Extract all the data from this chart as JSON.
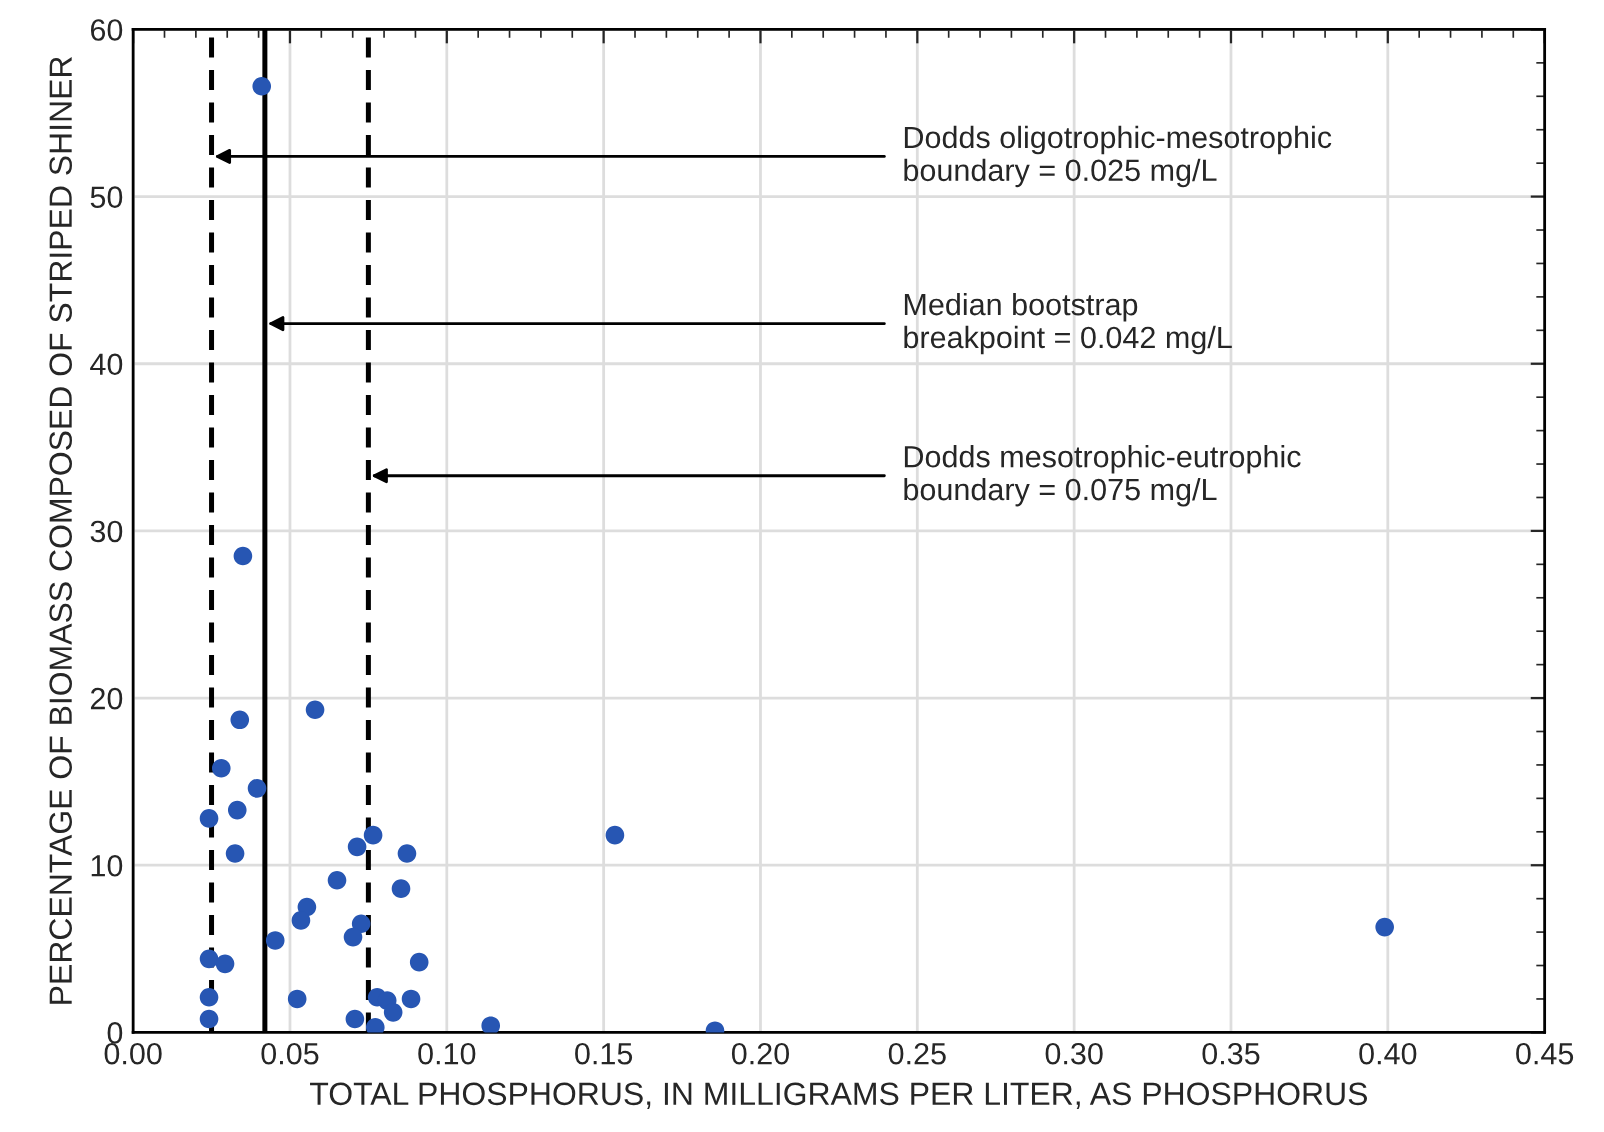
{
  "chart_data": {
    "type": "scatter",
    "xlabel": "TOTAL PHOSPHORUS, IN MILLIGRAMS PER LITER, AS PHOSPHORUS",
    "ylabel": "PERCENTAGE OF BIOMASS COMPOSED OF STRIPED SHINER",
    "series": [
      {
        "color": "#2756b3",
        "x": [
          0.041,
          0.035,
          0.058,
          0.034,
          0.0395,
          0.0281,
          0.0332,
          0.0242,
          0.0325,
          0.0765,
          0.0714,
          0.0873,
          0.1536,
          0.065,
          0.0854,
          0.0554,
          0.0535,
          0.0727,
          0.0701,
          0.0453,
          0.399,
          0.0912,
          0.0242,
          0.0293,
          0.0523,
          0.0242,
          0.0778,
          0.081,
          0.0829,
          0.0886,
          0.0707,
          0.0772,
          0.0242,
          0.114,
          0.1855
        ],
        "values": [
          56.6,
          28.5,
          19.3,
          18.7,
          14.6,
          15.8,
          13.3,
          12.8,
          10.7,
          11.8,
          11.1,
          10.7,
          11.8,
          9.1,
          8.6,
          7.5,
          6.7,
          6.5,
          5.7,
          5.5,
          6.3,
          4.2,
          4.4,
          4.1,
          2.0,
          2.1,
          2.1,
          1.9,
          1.2,
          2.0,
          0.8,
          0.3,
          0.8,
          0.4,
          0.1
        ]
      }
    ],
    "xlim": [
      0,
      0.45
    ],
    "ylim": [
      0,
      60
    ],
    "xticks": [
      {
        "value": 0,
        "label": "0.00"
      },
      {
        "value": 0.05,
        "label": "0.05"
      },
      {
        "value": 0.1,
        "label": "0.10"
      },
      {
        "value": 0.15,
        "label": "0.15"
      },
      {
        "value": 0.2,
        "label": "0.20"
      },
      {
        "value": 0.25,
        "label": "0.25"
      },
      {
        "value": 0.3,
        "label": "0.30"
      },
      {
        "value": 0.35,
        "label": "0.35"
      },
      {
        "value": 0.4,
        "label": "0.40"
      },
      {
        "value": 0.45,
        "label": "0.45"
      }
    ],
    "yticks": [
      0,
      10,
      20,
      30,
      40,
      50,
      60
    ],
    "grid": true,
    "marker": "circle",
    "ref_lines": [
      {
        "axis": "x",
        "value": 0.025,
        "line_style": "dashed",
        "color": "#000000"
      },
      {
        "axis": "x",
        "value": 0.042,
        "line_style": "solid",
        "color": "#000000"
      },
      {
        "axis": "x",
        "value": 0.075,
        "line_style": "dashed",
        "color": "#000000"
      }
    ],
    "annotations": [
      {
        "text": "Dodds oligotrophic-mesotrophic\nboundary = 0.025 mg/L",
        "x": 0.025,
        "y": 52.4
      },
      {
        "text": "Median bootstrap\nbreakpoint = 0.042 mg/L",
        "x": 0.042,
        "y": 42.4
      },
      {
        "text": "Dodds mesotrophic-eutrophic\nboundary = 0.075 mg/L",
        "x": 0.075,
        "y": 33.3
      }
    ]
  }
}
